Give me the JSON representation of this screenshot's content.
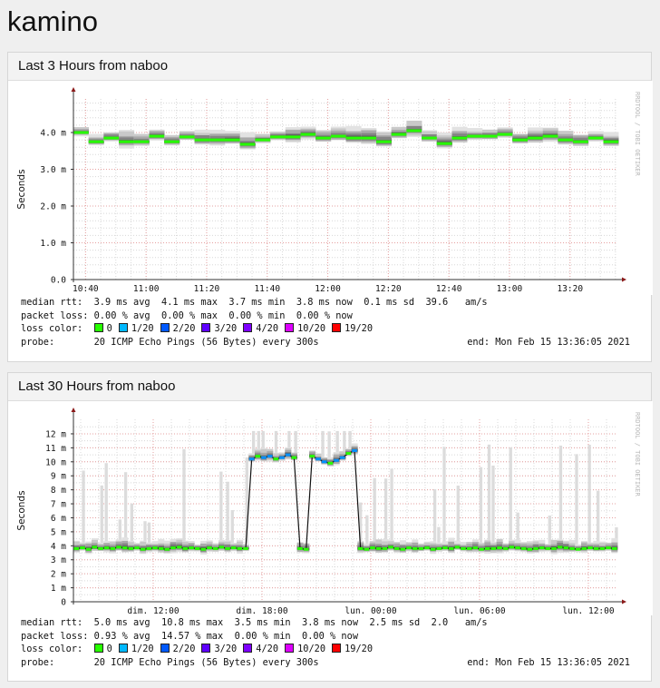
{
  "page": {
    "title": "kamino"
  },
  "graphs": [
    {
      "title": "Last 3 Hours from naboo",
      "rrdtool_label": "RRDTOOL / TOBI OETIKER",
      "legend": {
        "median_rtt": {
          "label": "median rtt:",
          "items": [
            "3.9 ms avg",
            "4.1 ms max",
            "3.7 ms min",
            "3.8 ms now",
            "0.1 ms sd",
            "39.6   am/s"
          ]
        },
        "packet_loss": {
          "label": "packet loss:",
          "items": [
            "0.00 % avg",
            "0.00 % max",
            "0.00 % min",
            "0.00 % now"
          ]
        },
        "loss_color": {
          "label": "loss color:",
          "items": [
            {
              "label": "0",
              "color": "#26ff00"
            },
            {
              "label": "1/20",
              "color": "#00b8ff"
            },
            {
              "label": "2/20",
              "color": "#0059ff"
            },
            {
              "label": "3/20",
              "color": "#5e00ff"
            },
            {
              "label": "4/20",
              "color": "#7e00ff"
            },
            {
              "label": "10/20",
              "color": "#dd00ff"
            },
            {
              "label": "19/20",
              "color": "#ff0000"
            }
          ]
        },
        "probe": {
          "label": "probe:",
          "value": "20 ICMP Echo Pings (56 Bytes) every 300s",
          "end": "end: Mon Feb 15 13:36:05 2021"
        }
      }
    },
    {
      "title": "Last 30 Hours from naboo",
      "rrdtool_label": "RRDTOOL / TOBI OETIKER",
      "legend": {
        "median_rtt": {
          "label": "median rtt:",
          "items": [
            "5.0 ms avg",
            "10.8 ms max",
            "3.5 ms min",
            "3.8 ms now",
            "2.5 ms sd",
            "2.0   am/s"
          ]
        },
        "packet_loss": {
          "label": "packet loss:",
          "items": [
            "0.93 % avg",
            "14.57 % max",
            "0.00 % min",
            "0.00 % now"
          ]
        },
        "loss_color": {
          "label": "loss color:",
          "items": [
            {
              "label": "0",
              "color": "#26ff00"
            },
            {
              "label": "1/20",
              "color": "#00b8ff"
            },
            {
              "label": "2/20",
              "color": "#0059ff"
            },
            {
              "label": "3/20",
              "color": "#5e00ff"
            },
            {
              "label": "4/20",
              "color": "#7e00ff"
            },
            {
              "label": "10/20",
              "color": "#dd00ff"
            },
            {
              "label": "19/20",
              "color": "#ff0000"
            }
          ]
        },
        "probe": {
          "label": "probe:",
          "value": "20 ICMP Echo Pings (56 Bytes) every 300s",
          "end": "end: Mon Feb 15 13:36:05 2021"
        }
      }
    }
  ],
  "chart_data": [
    {
      "type": "area",
      "title": "Last 3 Hours from naboo",
      "ylabel": "Seconds",
      "ylim": [
        0,
        5
      ],
      "yticks": [
        "0.0",
        "1.0 m",
        "2.0 m",
        "3.0 m",
        "4.0 m"
      ],
      "ytick_values": [
        0,
        1,
        2,
        3,
        4
      ],
      "xticks": [
        "10:40",
        "11:00",
        "11:20",
        "11:40",
        "12:00",
        "12:20",
        "12:40",
        "13:00",
        "13:20"
      ],
      "xtick_minutes": [
        4,
        24,
        44,
        64,
        84,
        104,
        124,
        144,
        164
      ],
      "start_time": "10:36",
      "step_minutes": 5,
      "median_ms": [
        4.0,
        3.75,
        3.85,
        3.75,
        3.75,
        3.9,
        3.75,
        3.88,
        3.8,
        3.8,
        3.8,
        3.68,
        3.8,
        3.88,
        3.88,
        3.95,
        3.85,
        3.9,
        3.85,
        3.85,
        3.75,
        3.95,
        4.05,
        3.85,
        3.7,
        3.85,
        3.9,
        3.9,
        3.95,
        3.8,
        3.85,
        3.9,
        3.8,
        3.75,
        3.85,
        3.75
      ]
    },
    {
      "type": "area",
      "title": "Last 30 Hours from naboo",
      "ylabel": "Seconds",
      "ylim": [
        0,
        12.5
      ],
      "yticks": [
        "0",
        "1 m",
        "2 m",
        "3 m",
        "4 m",
        "5 m",
        "6 m",
        "7 m",
        "8 m",
        "9 m",
        "10 m",
        "11 m",
        "12 m"
      ],
      "ytick_values": [
        0,
        1,
        2,
        3,
        4,
        5,
        6,
        7,
        8,
        9,
        10,
        11,
        12
      ],
      "xticks": [
        "dim. 12:00",
        "dim. 18:00",
        "lun. 00:00",
        "lun. 06:00",
        "lun. 12:00"
      ],
      "xtick_hours": [
        4.4,
        10.4,
        16.4,
        22.4,
        28.4
      ],
      "start_time": "dim. 07:36",
      "step_minutes": 20,
      "median_ms": [
        3.8,
        3.85,
        3.75,
        3.9,
        3.8,
        3.85,
        3.8,
        3.9,
        3.85,
        3.8,
        3.85,
        3.75,
        3.8,
        3.85,
        3.8,
        3.75,
        3.85,
        3.9,
        3.8,
        3.85,
        3.8,
        3.75,
        3.85,
        3.8,
        3.9,
        3.8,
        3.85,
        3.8,
        3.8,
        10.2,
        10.4,
        10.3,
        10.4,
        10.2,
        10.3,
        10.5,
        10.3,
        3.8,
        3.75,
        10.4,
        10.2,
        10.0,
        9.9,
        10.1,
        10.3,
        10.6,
        10.8,
        3.8,
        3.75,
        3.85,
        3.8,
        3.8,
        3.9,
        3.8,
        3.75,
        3.85,
        3.8,
        3.8,
        3.85,
        3.75,
        3.8,
        3.85,
        3.8,
        3.9,
        3.8,
        3.8,
        3.85,
        3.75,
        3.8,
        3.8,
        3.85,
        3.8,
        3.9,
        3.85,
        3.8,
        3.75,
        3.8,
        3.85,
        3.8,
        3.8,
        3.9,
        3.85,
        3.8,
        3.75,
        3.8,
        3.85,
        3.8,
        3.8,
        3.85,
        3.8
      ],
      "loss_above_ms": 9
    }
  ]
}
